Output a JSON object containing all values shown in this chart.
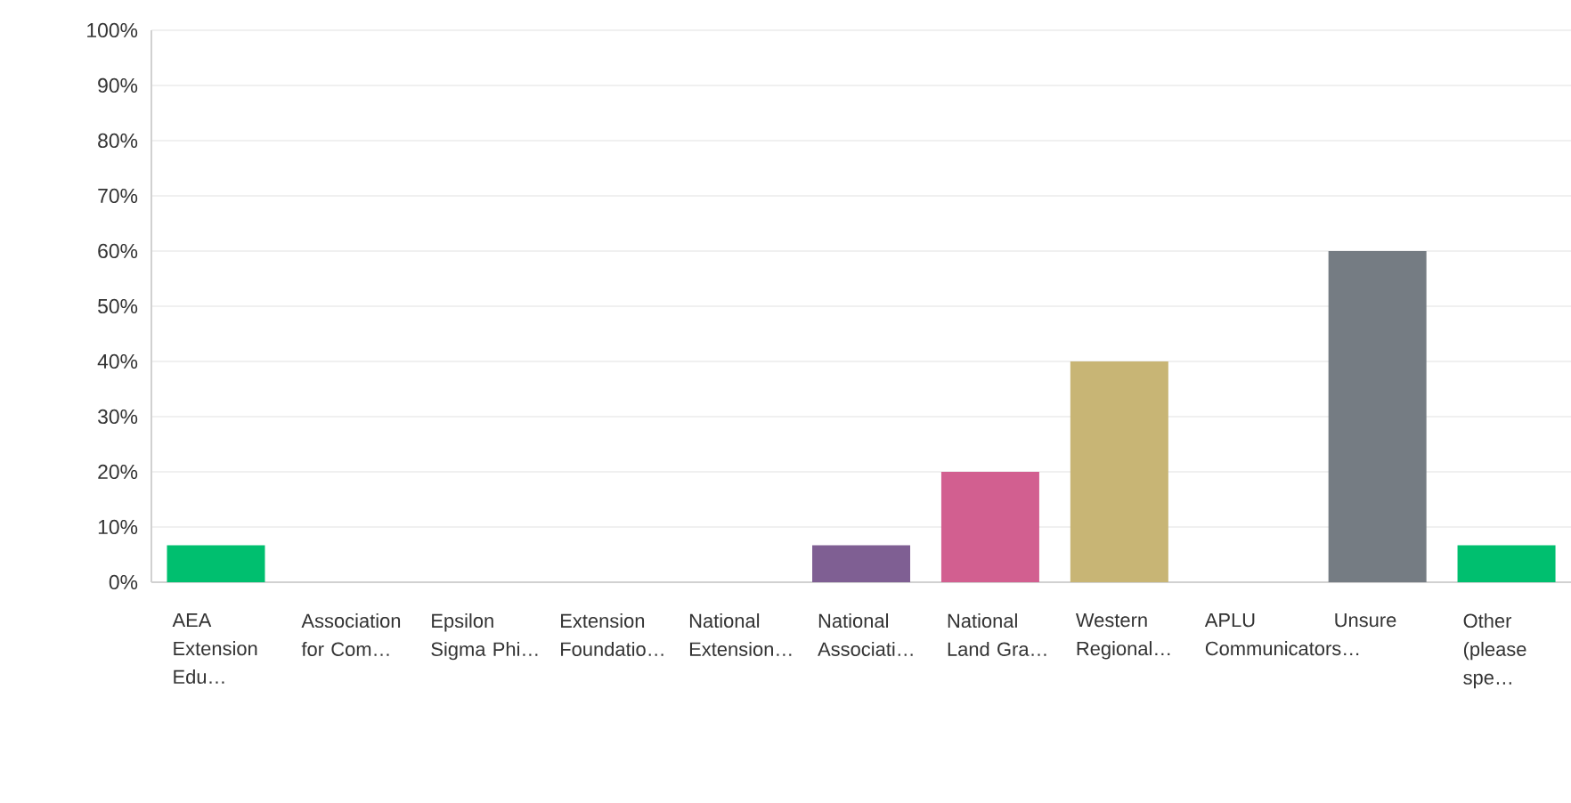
{
  "chart_data": {
    "type": "bar",
    "categories": [
      "AEA Extension Edu…",
      "Association for Com…",
      "Epsilon Sigma Phi…",
      "Extension Foundatio…",
      "National Extension…",
      "National Associati…",
      "National Land Gra…",
      "Western Regional…",
      "APLU Communicators…",
      "Unsure",
      "Other (please spe…"
    ],
    "values": [
      6.67,
      0,
      0,
      0,
      0,
      6.67,
      20,
      40,
      0,
      60,
      6.67
    ],
    "colors": [
      "#00bf6f",
      "#2dccd3",
      "#507cb6",
      "#f9be00",
      "#6bc8cd",
      "#7f5f93",
      "#d25f90",
      "#c8b575",
      "#4c5fa3",
      "#757c83",
      "#00bf6f"
    ],
    "ylim": [
      0,
      100
    ],
    "yticks": [
      {
        "value": 0,
        "label": "0%"
      },
      {
        "value": 10,
        "label": "10%"
      },
      {
        "value": 20,
        "label": "20%"
      },
      {
        "value": 30,
        "label": "30%"
      },
      {
        "value": 40,
        "label": "40%"
      },
      {
        "value": 50,
        "label": "50%"
      },
      {
        "value": 60,
        "label": "60%"
      },
      {
        "value": 70,
        "label": "70%"
      },
      {
        "value": 80,
        "label": "80%"
      },
      {
        "value": 90,
        "label": "90%"
      },
      {
        "value": 100,
        "label": "100%"
      }
    ],
    "grid": "y"
  }
}
